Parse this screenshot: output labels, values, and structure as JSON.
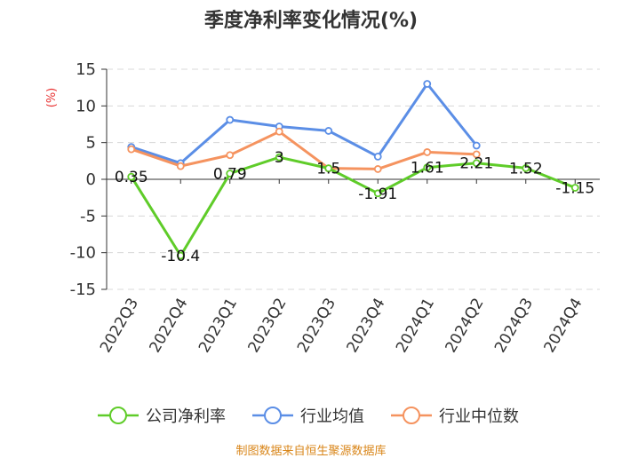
{
  "chart_data": {
    "type": "line",
    "title": "季度净利率变化情况(%)",
    "ylabel": "(%)",
    "ylim": [
      -15,
      15
    ],
    "yticks": [
      15,
      10,
      5,
      0,
      -5,
      -10,
      -15
    ],
    "categories": [
      "2022Q3",
      "2022Q4",
      "2023Q1",
      "2023Q2",
      "2023Q3",
      "2023Q4",
      "2024Q1",
      "2024Q2",
      "2024Q3",
      "2024Q4"
    ],
    "series": [
      {
        "name": "公司净利率",
        "color": "#5fcc29",
        "values": [
          0.35,
          -10.4,
          0.79,
          3,
          1.5,
          -1.91,
          1.61,
          2.21,
          1.52,
          -1.15
        ],
        "labels": [
          "0.35",
          "-10.4",
          "0.79",
          "3",
          "1.5",
          "-1.91",
          "1.61",
          "2.21",
          "1.52",
          "-1.15"
        ]
      },
      {
        "name": "行业均值",
        "color": "#5b8ee6",
        "values": [
          4.4,
          2.2,
          8.1,
          7.2,
          6.6,
          3.1,
          13.0,
          4.6,
          null,
          null
        ]
      },
      {
        "name": "行业中位数",
        "color": "#f5935f",
        "values": [
          4.1,
          1.8,
          3.3,
          6.5,
          1.5,
          1.4,
          3.7,
          3.4,
          null,
          null
        ]
      }
    ],
    "grid": true,
    "legend_position": "bottom"
  },
  "source": "制图数据来自恒生聚源数据库"
}
